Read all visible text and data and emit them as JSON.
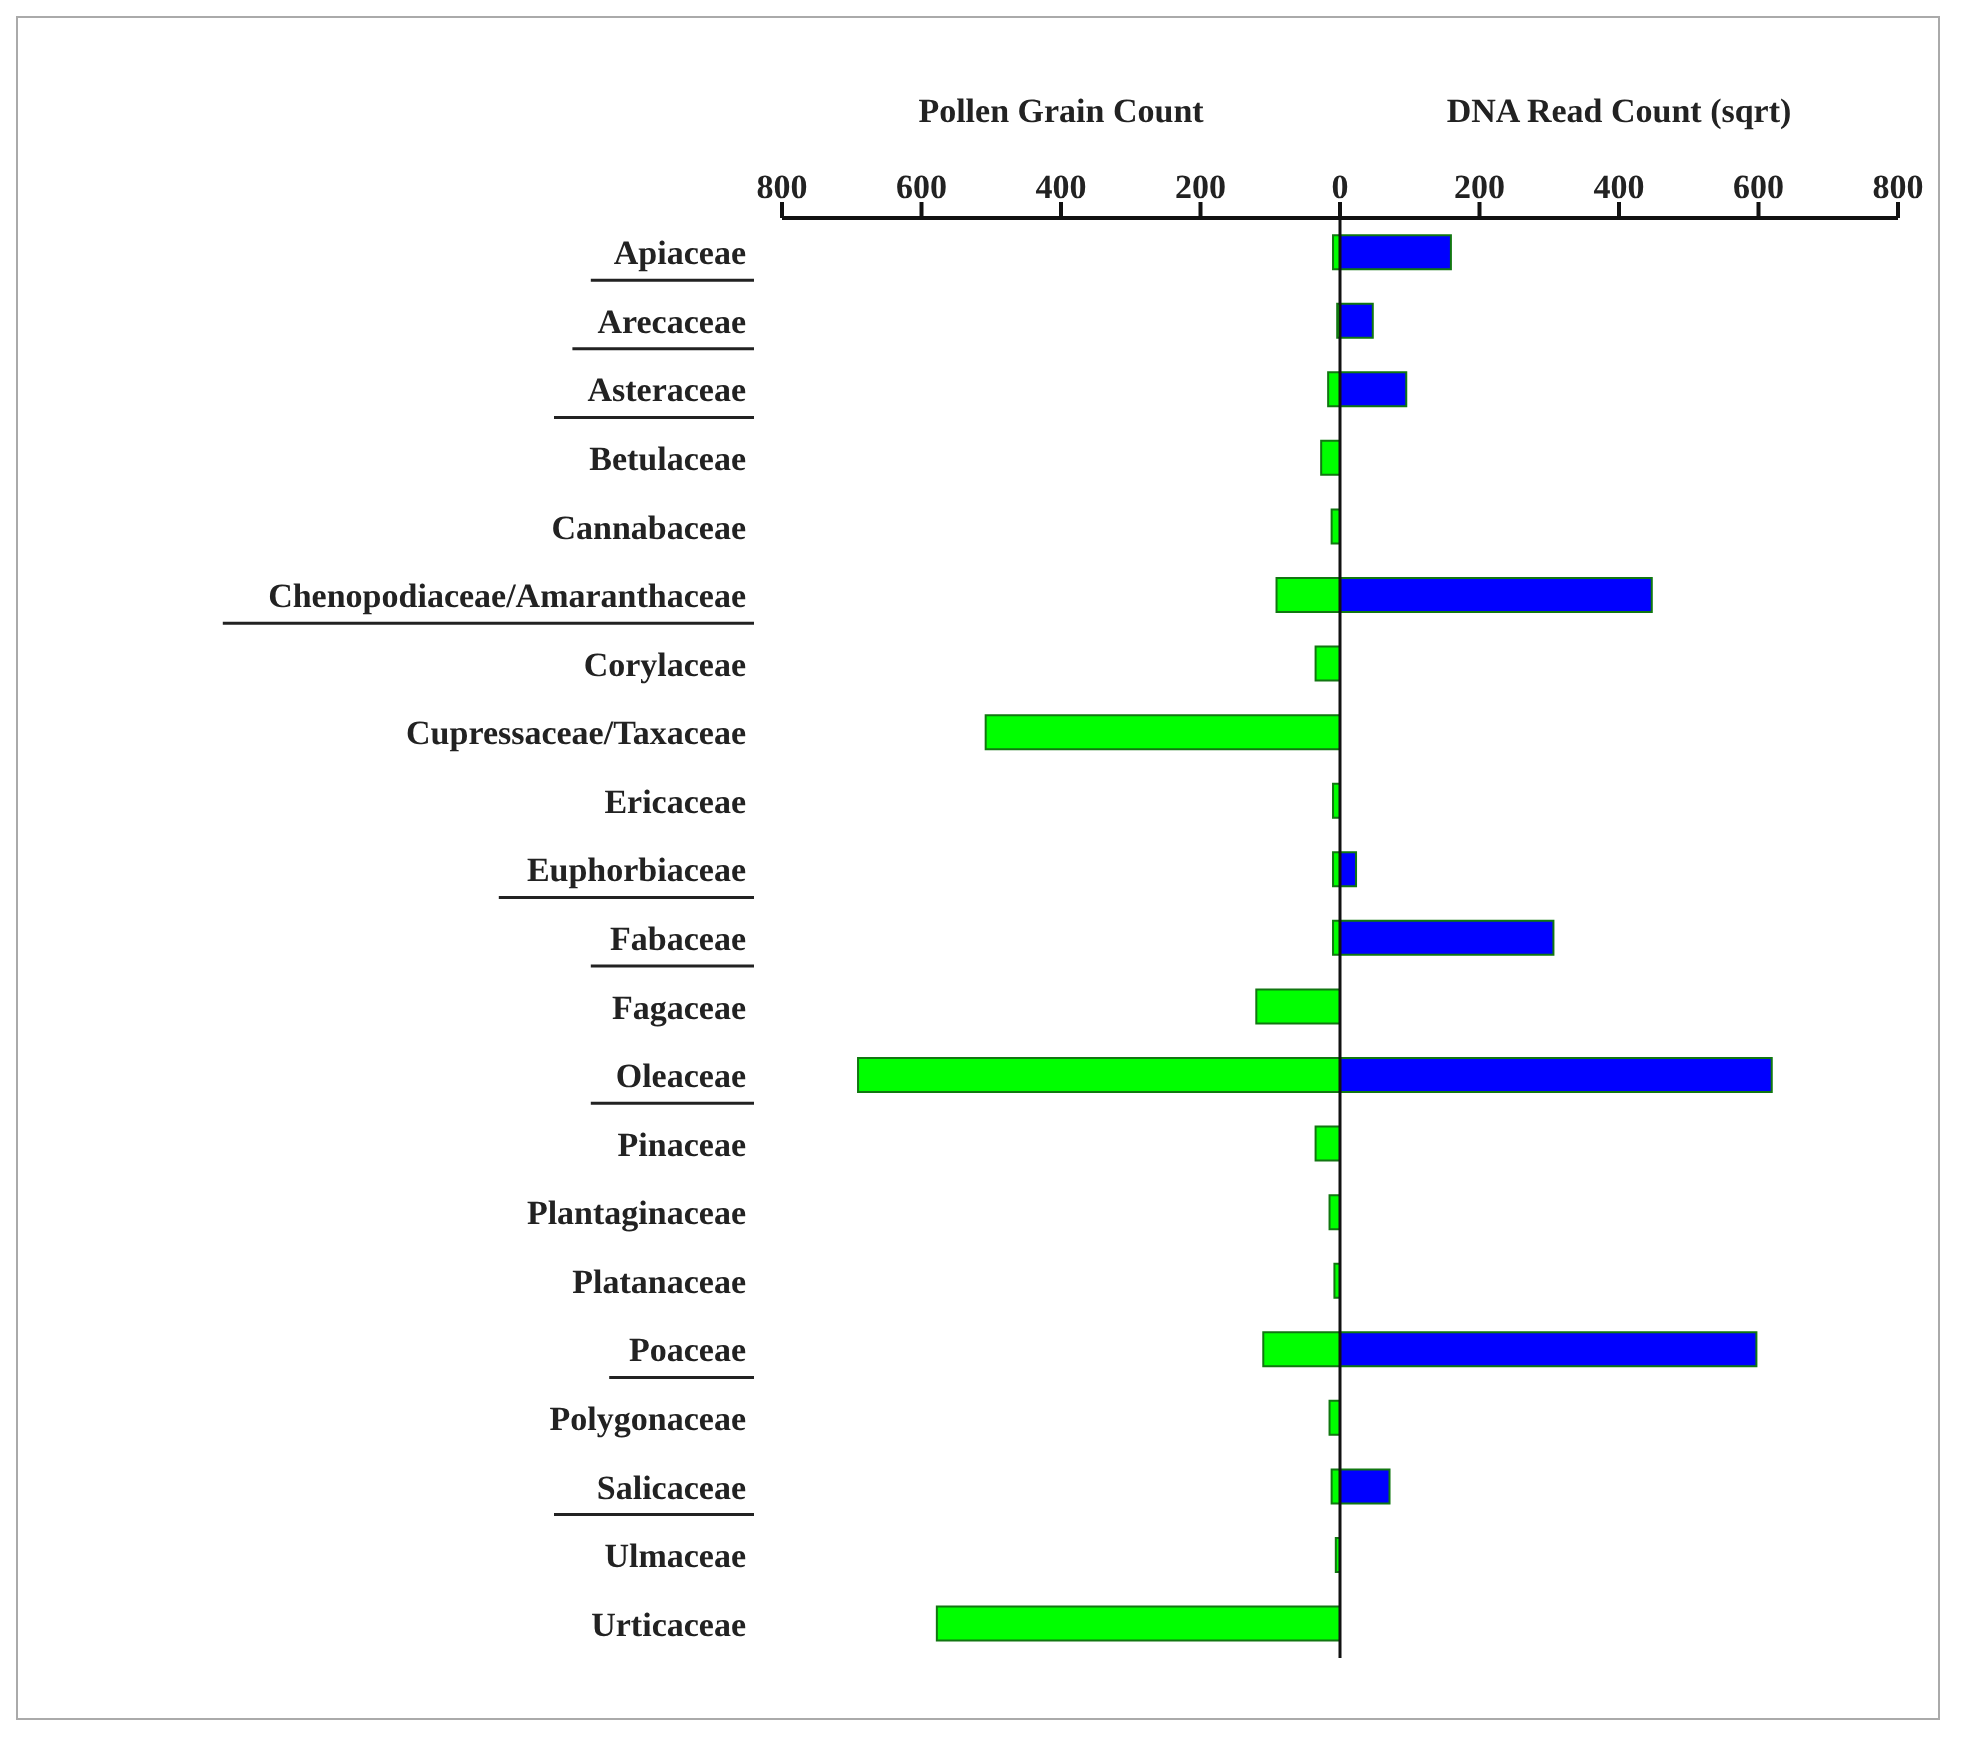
{
  "chart_data": {
    "type": "bar",
    "orientation": "horizontal",
    "stacked": true,
    "categories": [
      "Apiaceae",
      "Arecaceae",
      "Asteraceae",
      "Betulaceae",
      "Cannabaceae",
      "Chenopodiaceae/Amaranthaceae",
      "Corylaceae",
      "Cupressaceae/Taxaceae",
      "Ericaceae",
      "Euphorbiaceae",
      "Fabaceae",
      "Fagaceae",
      "Oleaceae",
      "Pinaceae",
      "Plantaginaceae",
      "Platanaceae",
      "Poaceae",
      "Polygonaceae",
      "Salicaceae",
      "Ulmaceae",
      "Urticaceae"
    ],
    "series": [
      {
        "name": "Pollen Grain Count",
        "color": "#00ff00",
        "values": [
          -10,
          -4,
          -17,
          -27,
          -12,
          -91,
          -35,
          -508,
          -10,
          -10,
          -10,
          -120,
          -691,
          -35,
          -15,
          -8,
          -110,
          -15,
          -12,
          -6,
          -578
        ]
      },
      {
        "name": "DNA Read Count (sqrt)",
        "color": "#0000ff",
        "values": [
          159,
          47,
          95,
          0,
          0,
          447,
          0,
          0,
          0,
          23,
          306,
          0,
          619,
          0,
          0,
          0,
          597,
          0,
          71,
          0,
          0
        ]
      }
    ],
    "xlim": [
      -800,
      800
    ],
    "xticks": [
      {
        "value": -800,
        "label": "800"
      },
      {
        "value": -600,
        "label": "600"
      },
      {
        "value": -400,
        "label": "400"
      },
      {
        "value": -200,
        "label": "200"
      },
      0,
      200,
      400,
      600,
      800
    ]
  }
}
